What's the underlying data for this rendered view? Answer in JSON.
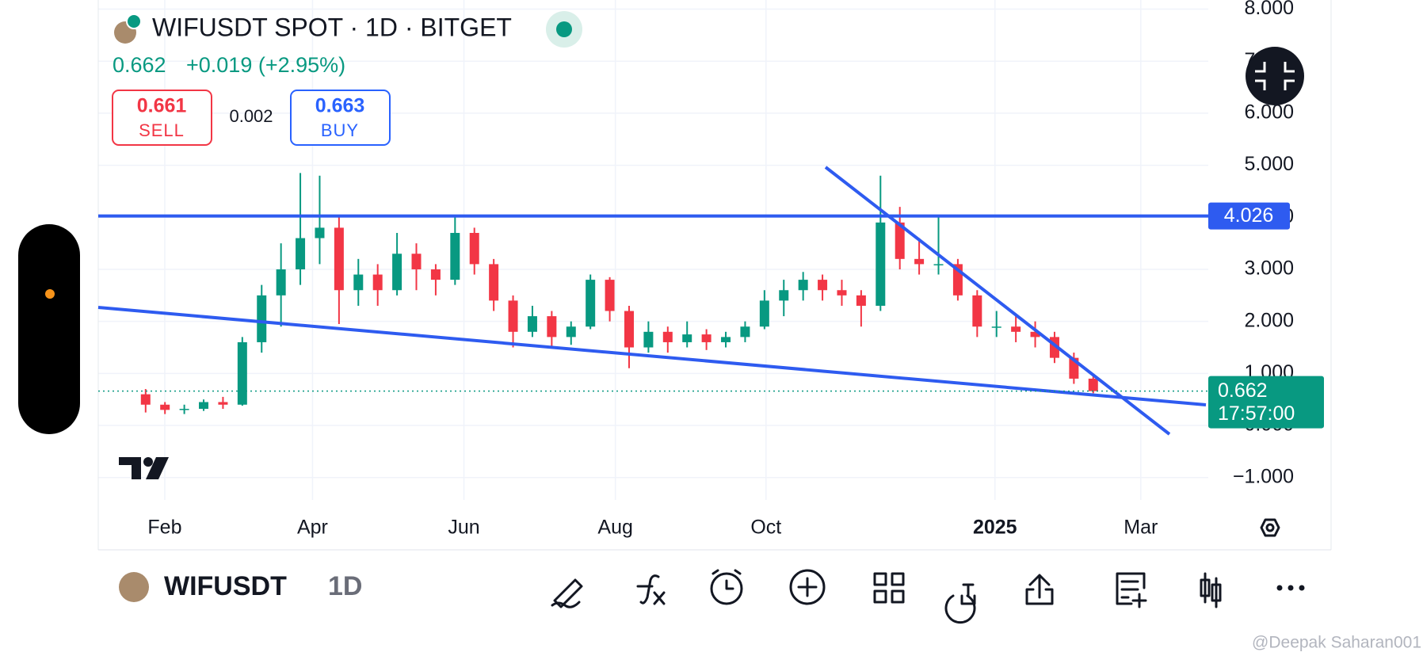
{
  "header": {
    "symbol_line": "WIFUSDT SPOT · 1D · BITGET",
    "price": 0.662,
    "change": "+0.019 (+2.95%)",
    "sell": {
      "price": 0.661,
      "label": "SELL"
    },
    "spread": 0.002,
    "buy": {
      "price": 0.663,
      "label": "BUY"
    }
  },
  "chart_data": {
    "type": "candlestick",
    "candles": {
      "open": [
        0.6,
        0.4,
        0.3,
        0.32,
        0.45,
        0.4,
        1.6,
        2.5,
        3.0,
        3.6,
        3.8,
        2.6,
        2.9,
        2.6,
        3.3,
        3.0,
        2.8,
        3.7,
        3.1,
        2.4,
        1.8,
        2.1,
        1.7,
        1.9,
        2.8,
        2.2,
        1.5,
        1.8,
        1.6,
        1.75,
        1.6,
        1.7,
        1.9,
        2.4,
        2.6,
        2.8,
        2.6,
        2.5,
        2.3,
        3.9,
        3.2,
        3.1,
        3.1,
        2.5,
        1.9,
        1.9,
        1.8,
        1.7,
        1.3,
        0.9
      ],
      "high": [
        0.7,
        0.45,
        0.4,
        0.5,
        0.55,
        1.7,
        2.7,
        3.5,
        4.85,
        4.8,
        4.0,
        3.2,
        3.1,
        3.7,
        3.5,
        3.1,
        4.05,
        3.8,
        3.2,
        2.5,
        2.3,
        2.2,
        2.0,
        2.9,
        2.85,
        2.3,
        2.0,
        1.9,
        2.0,
        1.85,
        1.8,
        2.0,
        2.6,
        2.8,
        2.95,
        2.9,
        2.8,
        2.6,
        4.8,
        4.2,
        3.6,
        4.0,
        3.2,
        2.6,
        2.2,
        2.1,
        2.0,
        1.8,
        1.4,
        0.95
      ],
      "low": [
        0.25,
        0.22,
        0.22,
        0.28,
        0.32,
        0.38,
        1.4,
        1.9,
        2.7,
        3.1,
        1.95,
        2.3,
        2.3,
        2.5,
        2.6,
        2.5,
        2.7,
        2.9,
        2.2,
        1.5,
        1.7,
        1.5,
        1.55,
        1.85,
        2.0,
        1.1,
        1.4,
        1.4,
        1.5,
        1.45,
        1.5,
        1.6,
        1.85,
        2.1,
        2.4,
        2.4,
        2.3,
        1.9,
        2.2,
        3.0,
        2.9,
        2.9,
        2.4,
        1.7,
        1.7,
        1.6,
        1.5,
        1.2,
        0.8,
        0.62
      ],
      "close": [
        0.4,
        0.3,
        0.32,
        0.45,
        0.4,
        1.6,
        2.5,
        3.0,
        3.6,
        3.8,
        2.6,
        2.9,
        2.6,
        3.3,
        3.0,
        2.8,
        3.7,
        3.1,
        2.4,
        1.8,
        2.1,
        1.7,
        1.9,
        2.8,
        2.2,
        1.5,
        1.8,
        1.6,
        1.75,
        1.6,
        1.7,
        1.9,
        2.4,
        2.6,
        2.8,
        2.6,
        2.5,
        2.3,
        3.9,
        3.2,
        3.1,
        3.1,
        2.5,
        1.9,
        1.9,
        1.8,
        1.7,
        1.3,
        0.9,
        0.66
      ]
    },
    "up_color": "#089981",
    "down_color": "#f23645",
    "xlim": [
      -2.45,
      54.95
    ],
    "xticks": [
      {
        "value": 0.99,
        "label": "Feb"
      },
      {
        "value": 8.63,
        "label": "Apr"
      },
      {
        "value": 16.46,
        "label": "Jun"
      },
      {
        "value": 24.29,
        "label": "Aug"
      },
      {
        "value": 32.08,
        "label": "Oct"
      },
      {
        "value": 43.92,
        "label": "2025"
      },
      {
        "value": 51.46,
        "label": "Mar"
      }
    ],
    "ylim": [
      -1.43,
      8.175
    ],
    "yticks": [
      {
        "value": 8,
        "label": "8.000"
      },
      {
        "value": 7,
        "label": "7.000"
      },
      {
        "value": 6,
        "label": "6.000"
      },
      {
        "value": 5,
        "label": "5.000"
      },
      {
        "value": 4,
        "label": "4.000"
      },
      {
        "value": 3,
        "label": "3.000"
      },
      {
        "value": 2,
        "label": "2.000"
      },
      {
        "value": 1,
        "label": "1.000"
      },
      {
        "value": 0,
        "label": "0.000"
      },
      {
        "value": -1,
        "label": "−1.000"
      }
    ],
    "grid": true,
    "level": 4.026,
    "level_color": "#2e5bf0",
    "last_price": 0.662,
    "countdown": "17:57:00",
    "last_color": "#089981"
  },
  "toolbar": {
    "symbol": "WIFUSDT",
    "interval": "1D"
  },
  "watermark": "@Deepak Saharan001"
}
